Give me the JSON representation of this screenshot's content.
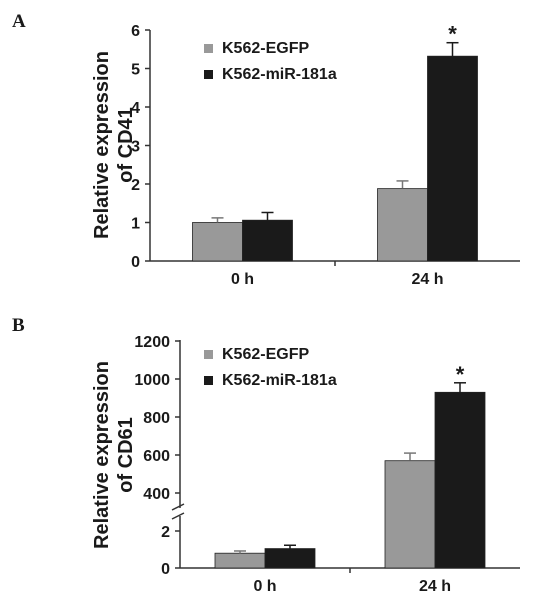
{
  "chart_data": [
    {
      "panel": "A",
      "type": "bar",
      "ylabel_lines": [
        "Relative expression",
        "of CD41"
      ],
      "categories": [
        "0 h",
        "24 h"
      ],
      "series": [
        {
          "name": "K562-EGFP",
          "values": [
            1.0,
            1.88
          ],
          "errors": [
            0.12,
            0.2
          ],
          "color": "#999999"
        },
        {
          "name": "K562-miR-181a",
          "values": [
            1.06,
            5.32
          ],
          "errors": [
            0.2,
            0.35
          ],
          "color": "#1a1a1a"
        }
      ],
      "ylim": [
        0,
        6
      ],
      "yticks": [
        0,
        1,
        2,
        3,
        4,
        5,
        6
      ],
      "annotations": [
        {
          "text": "*",
          "category": 1,
          "series": 1
        }
      ],
      "legend": "top-left",
      "grid": false
    },
    {
      "panel": "B",
      "type": "bar",
      "ylabel_lines": [
        "Relative expression",
        "of CD61"
      ],
      "categories": [
        "0 h",
        "24 h"
      ],
      "series": [
        {
          "name": "K562-EGFP",
          "values": [
            0.8,
            570
          ],
          "errors": [
            0.12,
            40
          ],
          "color": "#999999"
        },
        {
          "name": "K562-miR-181a",
          "values": [
            1.05,
            930
          ],
          "errors": [
            0.18,
            50
          ],
          "color": "#1a1a1a"
        }
      ],
      "broken_axis": {
        "lower": [
          0,
          3
        ],
        "upper": [
          300,
          1200
        ]
      },
      "yticks_lower": [
        0,
        2
      ],
      "yticks_upper": [
        400,
        600,
        800,
        1000,
        1200
      ],
      "annotations": [
        {
          "text": "*",
          "category": 1,
          "series": 1
        }
      ],
      "legend": "top-left",
      "grid": false
    }
  ]
}
